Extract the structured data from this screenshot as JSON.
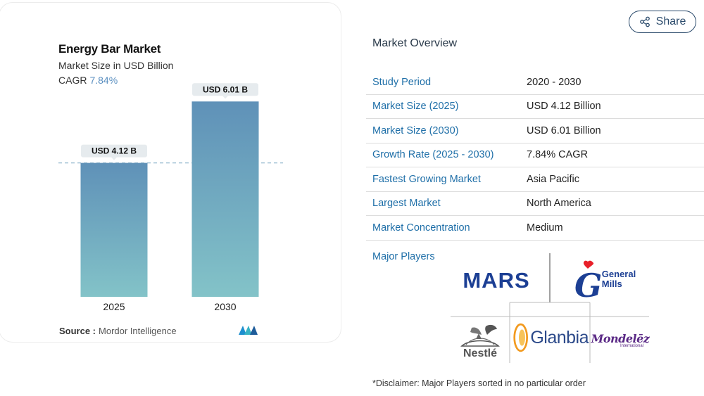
{
  "chart_card": {
    "title": "Energy Bar Market",
    "subtitle": "Market Size in USD Billion",
    "cagr_label": "CAGR",
    "cagr_value": "7.84%",
    "source_label": "Source :",
    "source_value": "Mordor Intelligence"
  },
  "chart_data": {
    "type": "bar",
    "title": "Energy Bar Market",
    "subtitle": "Market Size in USD Billion",
    "categories": [
      "2025",
      "2030"
    ],
    "values": [
      4.12,
      6.01
    ],
    "data_labels": [
      "USD 4.12 B",
      "USD 6.01 B"
    ],
    "ylim": [
      0,
      6.6
    ],
    "reference_line_value": 4.12,
    "grid": false,
    "colors": {
      "bar_top": "#5f91b8",
      "bar_bottom": "#83c3c8",
      "label_bg": "#e6ebee",
      "ref_line": "#8fb6cc"
    }
  },
  "share": {
    "label": "Share"
  },
  "overview": {
    "title": "Market Overview",
    "rows": [
      {
        "label": "Study Period",
        "value": "2020 - 2030"
      },
      {
        "label": "Market Size (2025)",
        "value": "USD 4.12 Billion"
      },
      {
        "label": "Market Size (2030)",
        "value": "USD 6.01 Billion"
      },
      {
        "label": "Growth Rate (2025 - 2030)",
        "value": "7.84% CAGR"
      },
      {
        "label": "Fastest Growing Market",
        "value": "Asia Pacific"
      },
      {
        "label": "Largest Market",
        "value": "North America"
      },
      {
        "label": "Market Concentration",
        "value": "Medium"
      }
    ],
    "players_label": "Major Players",
    "players": {
      "mars": "MARS",
      "general_mills_1": "General",
      "general_mills_2": "Mills",
      "nestle": "Nestlé",
      "glanbia": "Glanbia",
      "mondelez": "Mondelēz",
      "mondelez_sub": "International"
    },
    "disclaimer": "*Disclaimer: Major Players sorted in no particular order"
  },
  "colors": {
    "accent_blue": "#1f6fa8",
    "mars_blue": "#1c3f94",
    "mondelez_purple": "#5b2a86",
    "glanbia_orange": "#f29a1f"
  }
}
